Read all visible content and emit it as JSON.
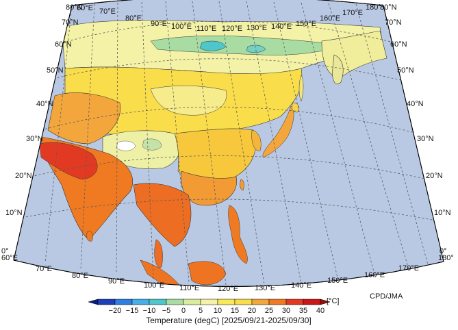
{
  "title": "Temperature (degC) [2025/09/21-2025/09/30]",
  "credit": "CPD/JMA",
  "axes": {
    "lon_top": [
      "60°E",
      "70°E",
      "80°E",
      "90°E",
      "100°E",
      "110°E",
      "120°E",
      "130°E",
      "140°E",
      "150°E",
      "160°E",
      "170°E",
      "180°"
    ],
    "lon_bottom": [
      "60°E",
      "70°E",
      "80°E",
      "90°E",
      "100°E",
      "110°E",
      "120°E",
      "130°E",
      "140°E",
      "150°E",
      "160°E",
      "170°E",
      "180°"
    ],
    "lat_left": [
      "80°N",
      "70°N",
      "60°N",
      "50°N",
      "40°N",
      "30°N",
      "20°N",
      "10°N",
      "0°"
    ],
    "lat_right": [
      "80°N",
      "70°N",
      "60°N",
      "50°N",
      "40°N",
      "30°N",
      "20°N",
      "10°N",
      "0°"
    ]
  },
  "legend": {
    "unit": "[°C]",
    "ticks": [
      "−20",
      "−15",
      "−10",
      "−5",
      "0",
      "5",
      "10",
      "15",
      "20",
      "25",
      "30",
      "35",
      "40"
    ],
    "colors": [
      "#1f3fb8",
      "#2f7fe0",
      "#48aee8",
      "#4fc6c9",
      "#a8dca2",
      "#d9ec9e",
      "#f4f2a6",
      "#f9e85a",
      "#f9dd4a",
      "#f3a63c",
      "#ef7a22",
      "#e23a22",
      "#c81818"
    ],
    "low_arrow_color": "#0b1d80",
    "high_arrow_color": "#9b0c0c"
  }
}
